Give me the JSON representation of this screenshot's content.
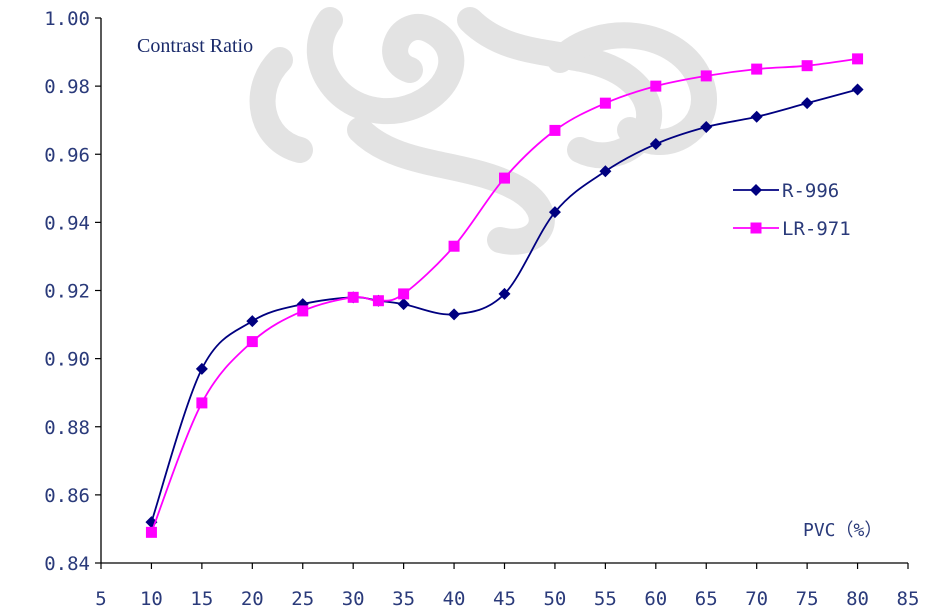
{
  "chart_data": {
    "type": "line",
    "title": "Contrast Ratio",
    "xlabel": "PVC（%）",
    "ylabel": "",
    "xlim": [
      5,
      85
    ],
    "ylim": [
      0.84,
      1.0
    ],
    "x_ticks": [
      "5",
      "10",
      "15",
      "20",
      "25",
      "30",
      "35",
      "40",
      "45",
      "50",
      "55",
      "60",
      "65",
      "70",
      "75",
      "80",
      "85"
    ],
    "y_ticks": [
      "0.84",
      "0.86",
      "0.88",
      "0.90",
      "0.92",
      "0.94",
      "0.96",
      "0.98",
      "1.00"
    ],
    "legend_position": "right",
    "grid": false,
    "series": [
      {
        "name": "R-996",
        "color": "#000080",
        "marker": "diamond",
        "x": [
          10,
          15,
          20,
          25,
          30,
          32.5,
          35,
          40,
          45,
          50,
          55,
          60,
          65,
          70,
          75,
          80
        ],
        "y": [
          0.852,
          0.897,
          0.911,
          0.916,
          0.918,
          0.917,
          0.916,
          0.913,
          0.919,
          0.943,
          0.955,
          0.963,
          0.968,
          0.971,
          0.975,
          0.979
        ]
      },
      {
        "name": "LR-971",
        "color": "#ff00ff",
        "marker": "square",
        "x": [
          10,
          15,
          20,
          25,
          30,
          32.5,
          35,
          40,
          45,
          50,
          55,
          60,
          65,
          70,
          75,
          80
        ],
        "y": [
          0.849,
          0.887,
          0.905,
          0.914,
          0.918,
          0.917,
          0.919,
          0.933,
          0.953,
          0.967,
          0.975,
          0.98,
          0.983,
          0.985,
          0.986,
          0.988
        ]
      }
    ]
  }
}
